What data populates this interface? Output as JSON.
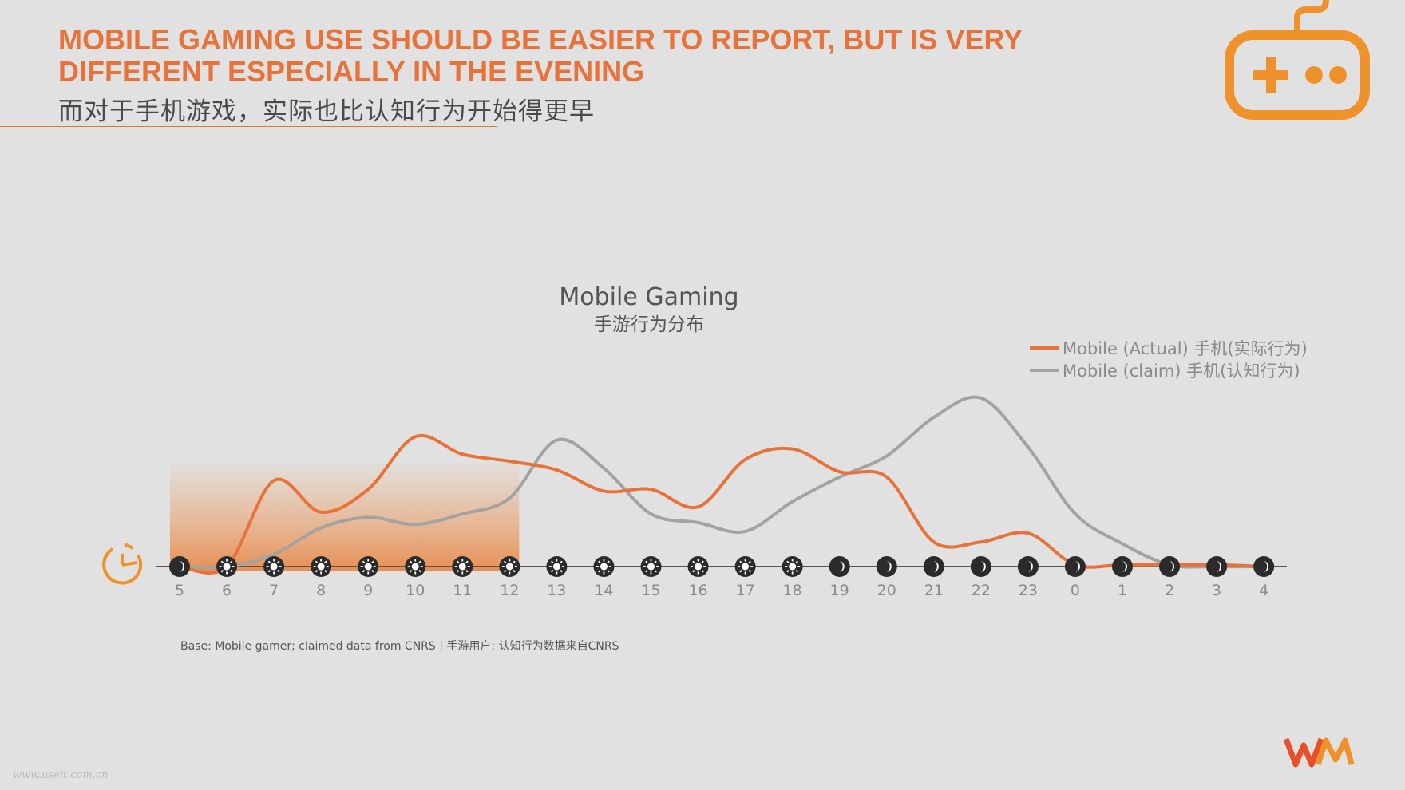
{
  "header": {
    "title_line1": "MOBILE GAMING USE SHOULD BE EASIER TO REPORT, BUT IS VERY",
    "title_line2": "DIFFERENT ESPECIALLY IN THE EVENING",
    "subtitle": "而对于手机游戏，实际也比认知行为开始得更早"
  },
  "footnote": "Base: Mobile gamer; claimed data from CNRS | 手游用户; 认知行为数据来自CNRS",
  "watermark": "www.useit.com.cn",
  "colors": {
    "accent": "#e8733a",
    "actual": "#e8733a",
    "claim": "#a3a3a0",
    "night_marker": "#2b2b2b",
    "day_marker": "#2b2b2b"
  },
  "icons": {
    "gamepad": "gamepad-icon",
    "clock": "clock-icon",
    "sun": "sun-icon",
    "moon": "moon-icon",
    "logo": "wm-logo"
  },
  "chart_data": {
    "type": "line",
    "title": "Mobile Gaming",
    "subtitle": "手游行为分布",
    "xlabel": "",
    "ylabel": "",
    "categories": [
      "5",
      "6",
      "7",
      "8",
      "9",
      "10",
      "11",
      "12",
      "13",
      "14",
      "15",
      "16",
      "17",
      "18",
      "19",
      "20",
      "21",
      "22",
      "23",
      "0",
      "1",
      "2",
      "3",
      "4"
    ],
    "ylim": [
      0,
      100
    ],
    "grid": false,
    "legend_position": "top-right",
    "highlight_range": [
      "5",
      "12"
    ],
    "period_markers": [
      "night",
      "day",
      "day",
      "day",
      "day",
      "day",
      "day",
      "day",
      "day",
      "day",
      "day",
      "day",
      "day",
      "day",
      "night",
      "night",
      "night",
      "night",
      "night",
      "night",
      "night",
      "night",
      "night",
      "night"
    ],
    "series": [
      {
        "name": "Mobile (Actual) 手机(实际行为)",
        "values": [
          0,
          0,
          49,
          31,
          44,
          74,
          64,
          60,
          55,
          43,
          44,
          34,
          61,
          67,
          54,
          51,
          14,
          14,
          19,
          1,
          1,
          1,
          1,
          0
        ]
      },
      {
        "name": "Mobile (claim) 手机(认知行为)",
        "values": [
          0,
          0,
          7,
          22,
          28,
          24,
          30,
          39,
          72,
          56,
          30,
          25,
          20,
          37,
          51,
          63,
          85,
          96,
          68,
          30,
          13,
          1,
          0,
          0
        ]
      }
    ]
  }
}
